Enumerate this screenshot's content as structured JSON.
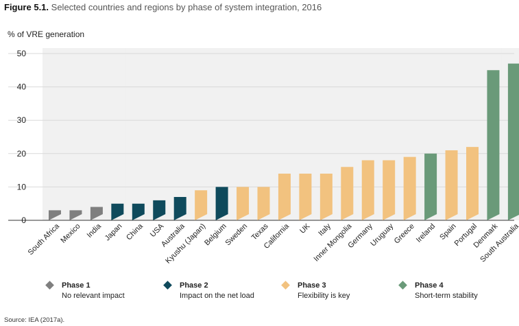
{
  "figure": {
    "label": "Figure 5.1.",
    "caption": "Selected countries and regions by phase of system integration, 2016"
  },
  "source": "Source: IEA (2017a).",
  "colors": {
    "phase1": "#7f7f7f",
    "phase2": "#0f4a5c",
    "phase3": "#f2c27f",
    "phase4": "#6a9a79",
    "column_band": "#f1f1f1",
    "grid": "#d9d9d9"
  },
  "legend": [
    {
      "phase": 1,
      "name": "Phase 1",
      "desc": "No relevant impact"
    },
    {
      "phase": 2,
      "name": "Phase 2",
      "desc": "Impact on the net load"
    },
    {
      "phase": 3,
      "name": "Phase 3",
      "desc": "Flexibility is key"
    },
    {
      "phase": 4,
      "name": "Phase 4",
      "desc": "Short-term stability"
    }
  ],
  "chart_data": {
    "type": "bar",
    "title": "",
    "ylabel": "% of VRE generation",
    "xlabel": "",
    "ylim": [
      0,
      50
    ],
    "yticks": [
      "0",
      "10",
      "20",
      "30",
      "40",
      "50"
    ],
    "grid": true,
    "legend_position": "bottom",
    "categories": [
      "South Africa",
      "Mexico",
      "India",
      "Japan",
      "China",
      "USA",
      "Australia",
      "Kyushu (Japan)",
      "Belgium",
      "Sweden",
      "Texas",
      "California",
      "UK",
      "Italy",
      "Inner Mongolia",
      "Germany",
      "Uruguay",
      "Greece",
      "Ireland",
      "Spain",
      "Portugal",
      "Denmark",
      "South Australia"
    ],
    "values": [
      3,
      3,
      4,
      5,
      5,
      6,
      7,
      9,
      10,
      10,
      10,
      14,
      14,
      14,
      16,
      18,
      18,
      19,
      20,
      21,
      22,
      45,
      47
    ],
    "phases": [
      1,
      1,
      1,
      2,
      2,
      2,
      2,
      3,
      2,
      3,
      3,
      3,
      3,
      3,
      3,
      3,
      3,
      3,
      4,
      3,
      3,
      4,
      4
    ]
  }
}
